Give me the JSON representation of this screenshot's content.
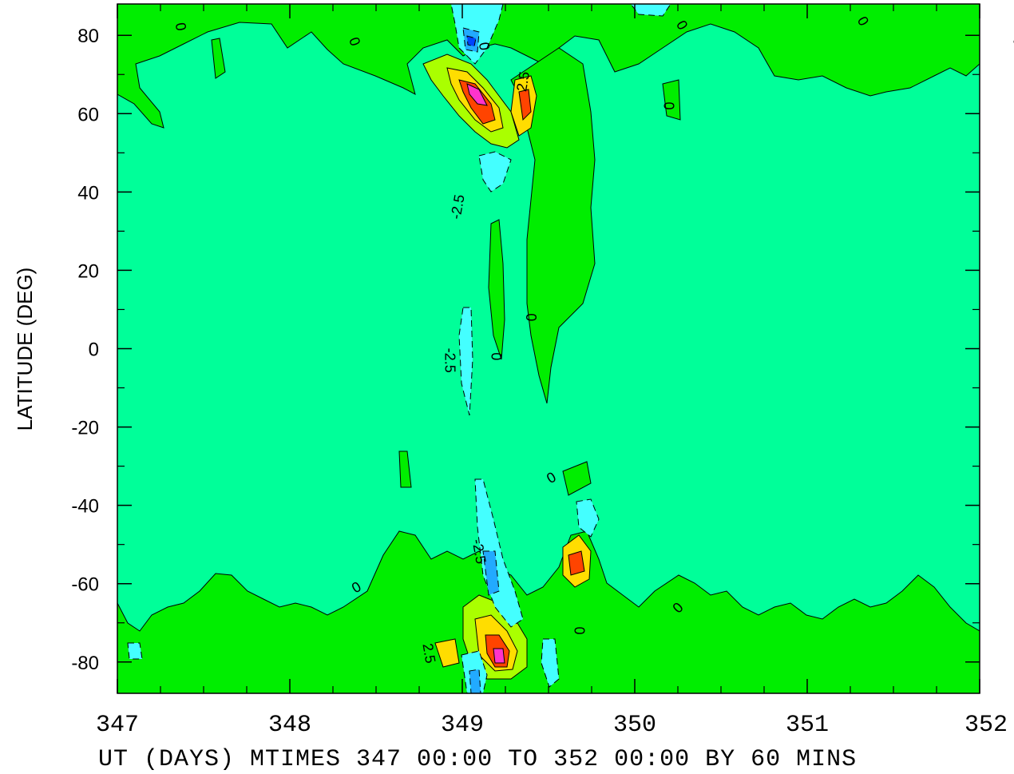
{
  "chart_data": {
    "type": "contour",
    "title": "",
    "xlabel": "UT (DAYS) MTIMES 347 00:00 TO 352 00:00 BY   60 MINS",
    "ylabel": "LATITUDE (DEG)",
    "xlim": [
      347,
      352
    ],
    "ylim": [
      -88,
      88
    ],
    "x_ticks": [
      "347",
      "348",
      "349",
      "350",
      "351",
      "352"
    ],
    "y_ticks": [
      "80",
      "60",
      "40",
      "20",
      "0",
      "-20",
      "-40",
      "-60",
      "-80"
    ],
    "contour_interval": 2.5,
    "contour_labels": [
      "0",
      "-2.5",
      "2.5"
    ],
    "background_level": 0,
    "colors": {
      "zero_band": "#00ff99",
      "positive_low": "#00ee00",
      "positive_mid": "#aaff00",
      "positive_high": "#ffdd00",
      "peak_positive": "#ff4400",
      "extreme_positive": "#ff33cc",
      "negative_low": "#44ffff",
      "negative_mid": "#22aaff",
      "negative_high": "#0044ff"
    },
    "features": [
      {
        "type": "positive_peak",
        "x": 349.05,
        "y": 63,
        "level": 10
      },
      {
        "type": "positive_peak",
        "x": 349.18,
        "y": -80,
        "level": 7.5
      },
      {
        "type": "positive_peak",
        "x": 349.3,
        "y": 62,
        "level": 5
      },
      {
        "type": "positive_peak",
        "x": 349.67,
        "y": -53,
        "level": 5
      },
      {
        "type": "negative_peak",
        "x": 349.02,
        "y": 78,
        "level": -5
      },
      {
        "type": "negative_peak",
        "x": 349.12,
        "y": -57,
        "level": -5
      },
      {
        "type": "negative_peak",
        "x": 349.03,
        "y": -85,
        "level": -5
      },
      {
        "type": "negative_trough",
        "x": 348.95,
        "y": 0,
        "level": -2.5
      },
      {
        "type": "negative_trough",
        "x": 349.1,
        "y": 40,
        "level": -2.5
      },
      {
        "type": "negative_trough",
        "x": 349.65,
        "y": -43,
        "level": -2.5
      }
    ]
  }
}
